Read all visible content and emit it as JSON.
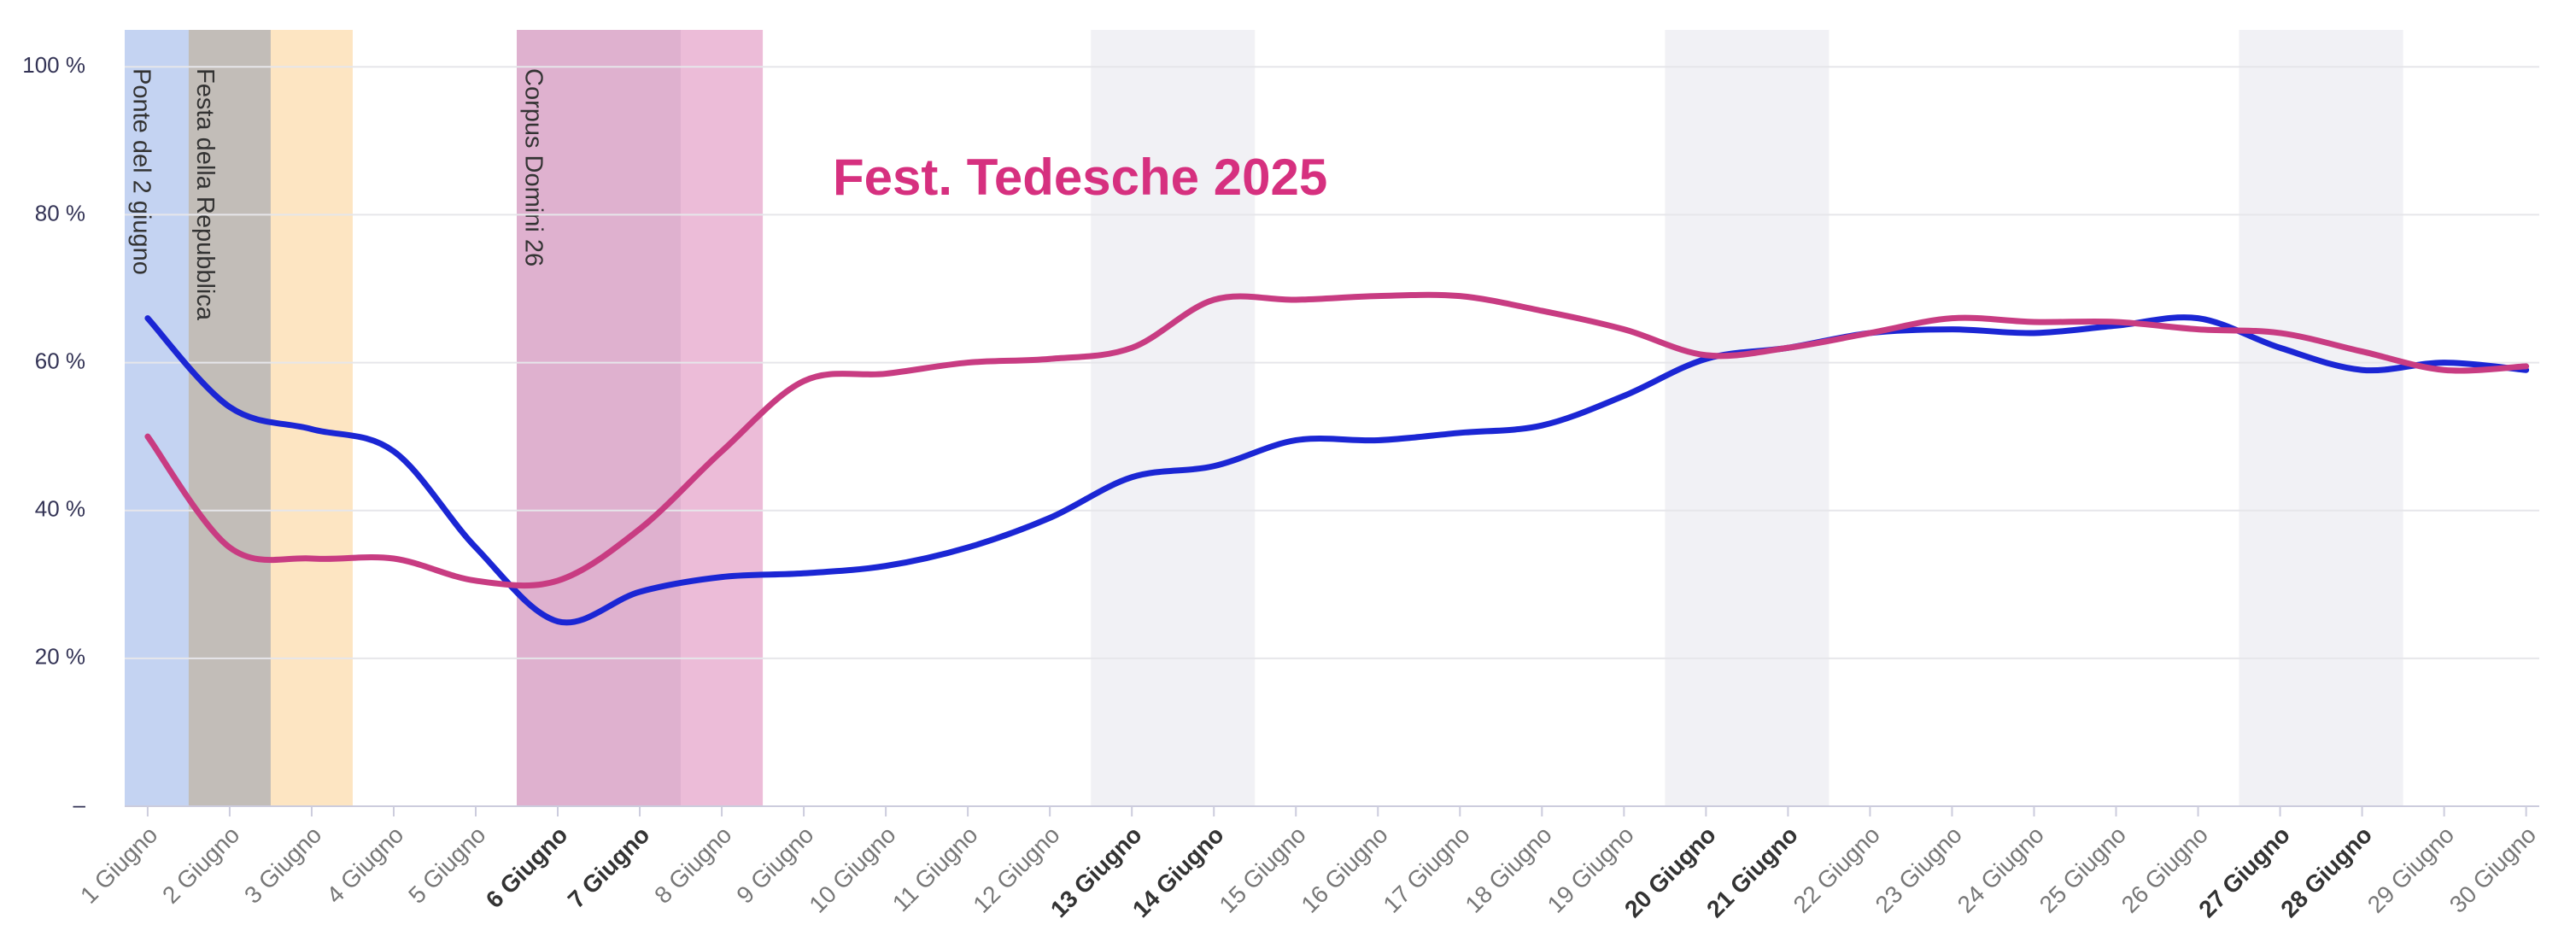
{
  "chart_data": {
    "type": "line",
    "annotation": "Fest. Tedesche 2025",
    "annotation_color": "#d6307f",
    "categories": [
      "1 Giugno",
      "2 Giugno",
      "3 Giugno",
      "4 Giugno",
      "5 Giugno",
      "6 Giugno",
      "7 Giugno",
      "8 Giugno",
      "9 Giugno",
      "10 Giugno",
      "11 Giugno",
      "12 Giugno",
      "13 Giugno",
      "14 Giugno",
      "15 Giugno",
      "16 Giugno",
      "17 Giugno",
      "18 Giugno",
      "19 Giugno",
      "20 Giugno",
      "21 Giugno",
      "22 Giugno",
      "23 Giugno",
      "24 Giugno",
      "25 Giugno",
      "26 Giugno",
      "27 Giugno",
      "28 Giugno",
      "29 Giugno",
      "30 Giugno"
    ],
    "bold_categories": [
      5,
      6,
      12,
      13,
      19,
      20,
      26,
      27
    ],
    "series": [
      {
        "color": "#1b26d4",
        "values": [
          66,
          54,
          51,
          48,
          35,
          25,
          29,
          31,
          31.5,
          32.5,
          35,
          39,
          44.5,
          46,
          49.5,
          49.5,
          50.5,
          51.5,
          55.5,
          60.5,
          62,
          64,
          64.5,
          64,
          65,
          66,
          62,
          59,
          60,
          59
        ]
      },
      {
        "color": "#c83c82",
        "values": [
          50,
          35,
          33.5,
          33.5,
          30.5,
          30.5,
          37.5,
          48,
          57.5,
          58.5,
          60,
          60.5,
          62,
          68.5,
          68.5,
          69,
          69,
          67,
          64.5,
          61,
          62,
          64,
          66,
          65.5,
          65.5,
          64.5,
          64,
          61.5,
          59,
          59.5
        ]
      }
    ],
    "bands": [
      {
        "from": -0.5,
        "to": 1.5,
        "color": "#c4d3f2",
        "label": "Ponte del 2 giugno"
      },
      {
        "from": 0.5,
        "to": 2.5,
        "color": "#fde5c2",
        "label": "Festa della Repubblica"
      },
      {
        "from": 4.5,
        "to": 7.5,
        "color": "#ecbcd8",
        "label": "Corpus Domini 26"
      },
      {
        "from": 4.5,
        "to": 6.5,
        "color": "#f1f1f5"
      },
      {
        "from": 11.5,
        "to": 13.5,
        "color": "#f1f1f5"
      },
      {
        "from": 18.5,
        "to": 20.5,
        "color": "#f1f1f5"
      },
      {
        "from": 25.5,
        "to": 27.5,
        "color": "#f1f1f5"
      }
    ],
    "ylim": [
      0,
      105
    ],
    "yticks": [
      {
        "value": 0,
        "label": "–"
      },
      {
        "value": 20,
        "label": "20 %"
      },
      {
        "value": 40,
        "label": "40 %"
      },
      {
        "value": 60,
        "label": "60 %"
      },
      {
        "value": 80,
        "label": "80 %"
      },
      {
        "value": 100,
        "label": "100 %"
      }
    ],
    "grid": true
  }
}
